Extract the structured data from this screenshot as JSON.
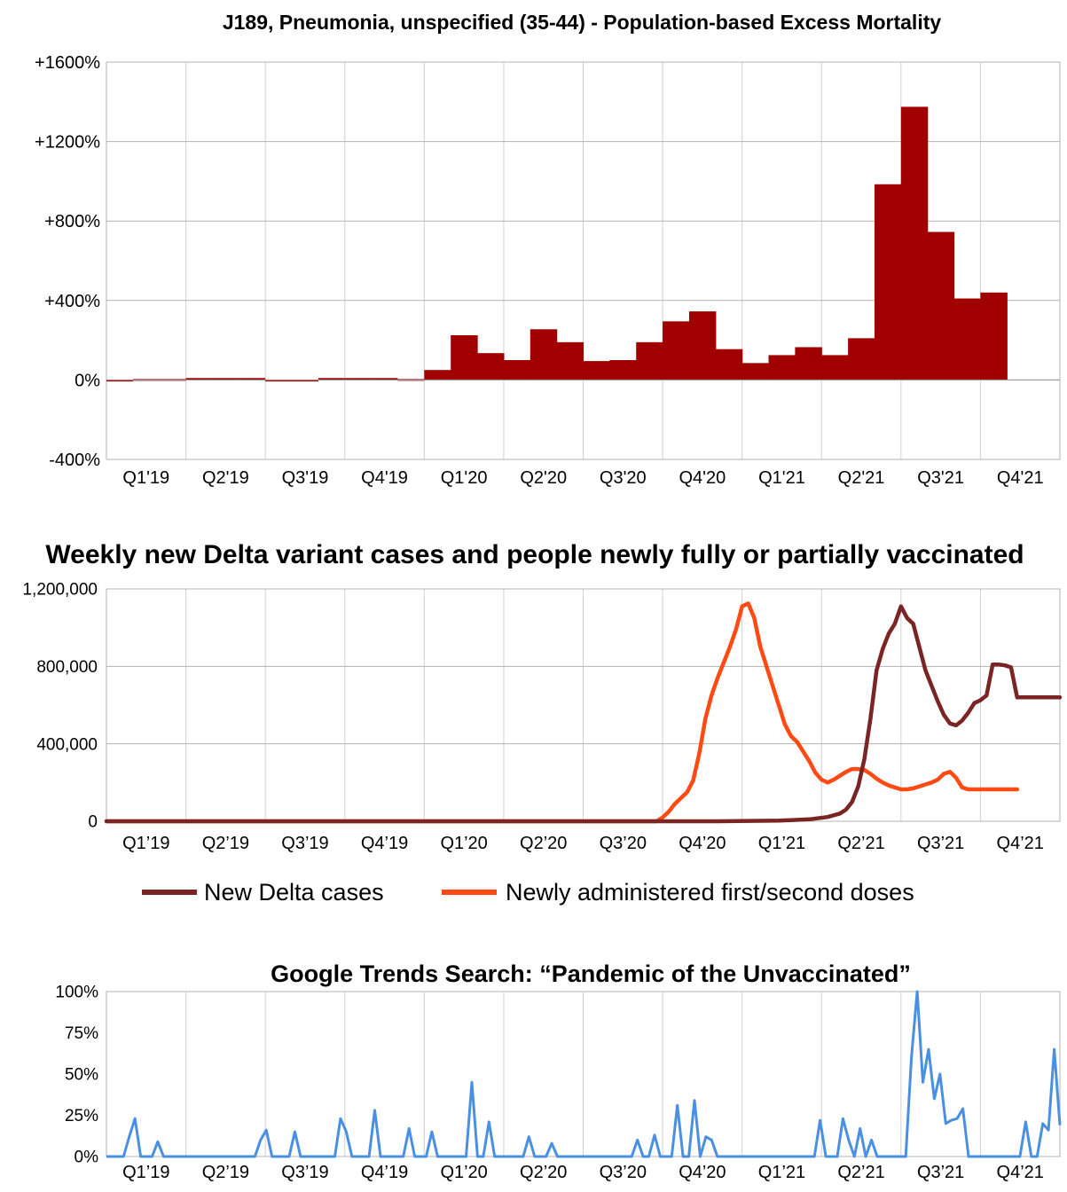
{
  "chart_data": [
    {
      "type": "bar",
      "title": "J189, Pneumonia, unspecified (35-44) - Population-based Excess Mortality",
      "xlabel": "",
      "ylabel": "",
      "ylim": [
        -400,
        1600
      ],
      "yticks": [
        "+1600%",
        "+1200%",
        "+800%",
        "+400%",
        "0%",
        "-400%"
      ],
      "ytick_values": [
        1600,
        1200,
        800,
        400,
        0,
        -400
      ],
      "x_tick_labels": [
        "Q1'19",
        "Q2'19",
        "Q3'19",
        "Q4'19",
        "Q1'20",
        "Q2'20",
        "Q3'20",
        "Q4'20",
        "Q1'21",
        "Q2'21",
        "Q3'21",
        "Q4'21"
      ],
      "periods_per_quarter": 3,
      "values": [
        -3,
        0,
        0,
        5,
        5,
        5,
        -3,
        -3,
        5,
        5,
        5,
        0,
        50,
        225,
        135,
        100,
        255,
        190,
        95,
        100,
        190,
        295,
        345,
        155,
        85,
        125,
        165,
        125,
        210,
        985,
        1375,
        745,
        410,
        440
      ],
      "color": "#a00000",
      "grid": true
    },
    {
      "type": "line",
      "title": "Weekly new Delta variant cases and people newly fully or partially vaccinated",
      "ylim": [
        0,
        1200000
      ],
      "yticks": [
        "1,200,000",
        "800,000",
        "400,000",
        "0"
      ],
      "ytick_values": [
        1200000,
        800000,
        400000,
        0
      ],
      "x_tick_labels": [
        "Q1’19",
        "Q2’19",
        "Q3’19",
        "Q4’19",
        "Q1’20",
        "Q2’20",
        "Q3’20",
        "Q4’20",
        "Q1’21",
        "Q2’21",
        "Q3’21",
        "Q4’21"
      ],
      "x_range_weeks": [
        0,
        156
      ],
      "series": [
        {
          "name": "New Delta cases",
          "color": "#7b2424",
          "x": [
            0,
            90,
            100,
            110,
            115,
            118,
            120,
            121,
            122,
            123,
            124,
            125,
            126,
            127,
            128,
            129,
            130,
            131,
            132,
            133,
            134,
            135,
            136,
            137,
            138,
            139,
            140,
            141,
            142,
            143,
            144,
            145,
            146,
            147,
            148,
            149,
            150,
            151,
            152,
            153,
            154,
            155,
            156
          ],
          "values": [
            0,
            0,
            0,
            3000,
            10000,
            22000,
            40000,
            60000,
            100000,
            180000,
            320000,
            530000,
            780000,
            890000,
            970000,
            1020000,
            1110000,
            1050000,
            1020000,
            900000,
            780000,
            700000,
            620000,
            550000,
            505000,
            495000,
            520000,
            560000,
            610000,
            625000,
            650000,
            810000,
            810000,
            805000,
            795000,
            640000,
            640000,
            640000,
            640000,
            640000,
            640000,
            640000,
            640000
          ]
        },
        {
          "name": "Newly administered first/second doses",
          "color": "#ff4a14",
          "x": [
            0,
            90,
            91,
            92,
            93,
            94,
            95,
            96,
            97,
            98,
            99,
            100,
            101,
            102,
            103,
            104,
            105,
            106,
            107,
            108,
            109,
            110,
            111,
            112,
            113,
            114,
            115,
            116,
            117,
            118,
            119,
            120,
            121,
            122,
            123,
            124,
            125,
            126,
            127,
            128,
            129,
            130,
            131,
            132,
            133,
            134,
            135,
            136,
            137,
            138,
            139,
            140,
            141,
            142,
            143,
            144,
            145,
            146,
            147,
            148,
            149
          ],
          "values": [
            0,
            0,
            20000,
            50000,
            90000,
            120000,
            150000,
            210000,
            350000,
            530000,
            650000,
            740000,
            820000,
            900000,
            990000,
            1110000,
            1125000,
            1050000,
            900000,
            800000,
            700000,
            600000,
            500000,
            440000,
            410000,
            360000,
            310000,
            250000,
            215000,
            200000,
            215000,
            235000,
            255000,
            270000,
            270000,
            265000,
            245000,
            220000,
            200000,
            185000,
            175000,
            165000,
            165000,
            170000,
            180000,
            190000,
            200000,
            215000,
            245000,
            255000,
            225000,
            175000,
            165000,
            165000,
            165000,
            165000,
            165000,
            165000,
            165000,
            165000,
            165000
          ]
        }
      ],
      "grid": true,
      "legend_position": "bottom"
    },
    {
      "type": "line",
      "title": "Google Trends Search: “Pandemic of the Unvaccinated”",
      "ylim": [
        0,
        100
      ],
      "yticks": [
        "100%",
        "75%",
        "50%",
        "25%",
        "0%"
      ],
      "ytick_values": [
        100,
        75,
        50,
        25,
        0
      ],
      "x_tick_labels": [
        "Q1’19",
        "Q2’19",
        "Q3’19",
        "Q4’19",
        "Q1’20",
        "Q2’20",
        "Q3’20",
        "Q4’20",
        "Q1’21",
        "Q2’21",
        "Q3’21",
        "Q4’21"
      ],
      "x_range_weeks": [
        0,
        156
      ],
      "series": [
        {
          "name": "Google Trends",
          "color": "#4a90e2",
          "values": [
            0,
            0,
            0,
            0,
            12,
            23,
            0,
            0,
            0,
            9,
            0,
            0,
            0,
            0,
            0,
            0,
            0,
            0,
            0,
            0,
            0,
            0,
            0,
            0,
            0,
            0,
            0,
            10,
            16,
            0,
            0,
            0,
            0,
            15,
            0,
            0,
            0,
            0,
            0,
            0,
            0,
            23,
            15,
            0,
            0,
            0,
            0,
            28,
            0,
            0,
            0,
            0,
            0,
            17,
            0,
            0,
            0,
            15,
            0,
            0,
            0,
            0,
            0,
            0,
            45,
            0,
            0,
            21,
            0,
            0,
            0,
            0,
            0,
            0,
            12,
            0,
            0,
            0,
            8,
            0,
            0,
            0,
            0,
            0,
            0,
            0,
            0,
            0,
            0,
            0,
            0,
            0,
            0,
            10,
            0,
            0,
            13,
            0,
            0,
            0,
            31,
            0,
            0,
            34,
            0,
            12,
            10,
            0,
            0,
            0,
            0,
            0,
            0,
            0,
            0,
            0,
            0,
            0,
            0,
            0,
            0,
            0,
            0,
            0,
            0,
            22,
            0,
            0,
            0,
            23,
            10,
            0,
            17,
            0,
            10,
            0,
            0,
            0,
            0,
            0,
            0,
            60,
            100,
            45,
            65,
            35,
            50,
            20,
            22,
            23,
            29,
            0,
            0,
            0,
            0,
            0,
            0,
            0,
            0,
            0,
            0,
            21,
            0,
            0,
            20,
            16,
            65,
            19
          ]
        }
      ],
      "grid": true
    }
  ]
}
